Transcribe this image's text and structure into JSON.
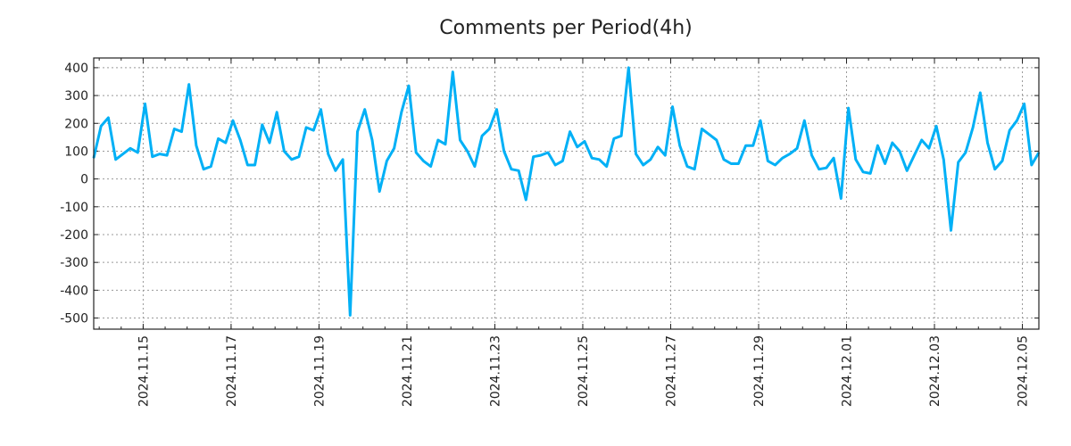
{
  "chart_data": {
    "type": "line",
    "title": "Comments per Period(4h)",
    "xlabel": "",
    "ylabel": "",
    "x_start": "2024-11-13T21:00",
    "step_hours": 4,
    "ylim": [
      -540,
      435
    ],
    "yticks": [
      400,
      300,
      200,
      100,
      0,
      -100,
      -200,
      -300,
      -400,
      -500
    ],
    "xticks": [
      "2024.11.15",
      "2024.11.17",
      "2024.11.19",
      "2024.11.21",
      "2024.11.23",
      "2024.11.25",
      "2024.11.27",
      "2024.11.29",
      "2024.12.01",
      "2024.12.03",
      "2024.12.05"
    ],
    "grid": true,
    "line_color": "#00b0f6",
    "series": [
      {
        "name": "comments",
        "values": [
          75,
          190,
          220,
          70,
          90,
          110,
          95,
          270,
          80,
          90,
          85,
          180,
          170,
          340,
          120,
          35,
          45,
          145,
          130,
          210,
          140,
          50,
          50,
          195,
          130,
          240,
          100,
          70,
          80,
          185,
          175,
          250,
          90,
          30,
          70,
          -490,
          170,
          250,
          140,
          -45,
          65,
          110,
          240,
          335,
          95,
          65,
          45,
          140,
          125,
          385,
          140,
          100,
          45,
          155,
          180,
          250,
          100,
          35,
          30,
          -75,
          80,
          85,
          95,
          50,
          65,
          170,
          115,
          135,
          75,
          70,
          45,
          145,
          155,
          400,
          90,
          50,
          70,
          115,
          85,
          260,
          120,
          45,
          35,
          180,
          160,
          140,
          70,
          55,
          55,
          120,
          120,
          210,
          65,
          50,
          75,
          90,
          110,
          210,
          85,
          35,
          40,
          75,
          -70,
          255,
          70,
          25,
          20,
          120,
          55,
          130,
          100,
          30,
          85,
          140,
          110,
          190,
          70,
          -185,
          60,
          95,
          185,
          310,
          130,
          35,
          65,
          175,
          210,
          270,
          50,
          95
        ]
      }
    ]
  }
}
